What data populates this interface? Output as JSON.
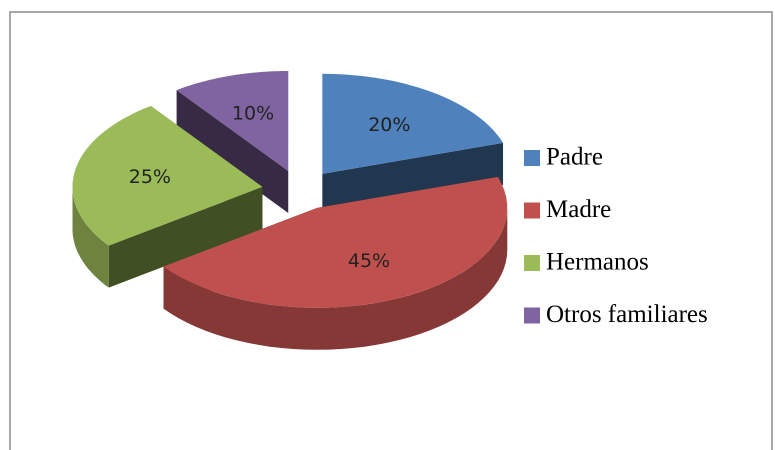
{
  "chart_data": {
    "type": "pie3d",
    "categories": [
      "Padre",
      "Madre",
      "Hermanos",
      "Otros familiares"
    ],
    "values": [
      20,
      45,
      25,
      10
    ],
    "value_labels": [
      "20%",
      "45%",
      "25%",
      "10%"
    ],
    "colors": [
      "#4f81bd",
      "#c0504d",
      "#9bbb59",
      "#8064a2"
    ],
    "legend": "right"
  }
}
